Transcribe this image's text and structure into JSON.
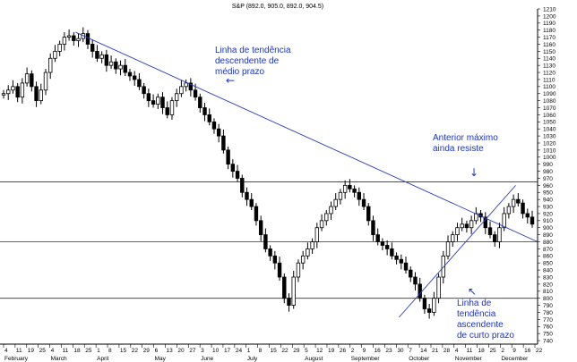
{
  "chart_data": {
    "type": "candlestick",
    "title": "S&P (892.0, 905.0, 892.0, 904.5)",
    "ylim": [
      735,
      1210
    ],
    "y_ticks": [
      740,
      750,
      760,
      770,
      780,
      790,
      800,
      810,
      820,
      830,
      840,
      850,
      860,
      870,
      880,
      890,
      900,
      910,
      920,
      930,
      940,
      950,
      960,
      970,
      980,
      990,
      1000,
      1010,
      1020,
      1030,
      1040,
      1050,
      1060,
      1070,
      1080,
      1090,
      1100,
      1110,
      1120,
      1130,
      1140,
      1150,
      1160,
      1170,
      1180,
      1190,
      1200,
      1210
    ],
    "x_ticks": [
      "4",
      "11",
      "19",
      "25",
      "4",
      "11",
      "18",
      "25",
      "1",
      "8",
      "15",
      "22",
      "29",
      "6",
      "13",
      "20",
      "27",
      "3",
      "10",
      "17",
      "24",
      "1",
      "8",
      "15",
      "22",
      "29",
      "5",
      "12",
      "19",
      "26",
      "2",
      "9",
      "16",
      "23",
      "30",
      "7",
      "14",
      "21",
      "28",
      "4",
      "11",
      "18",
      "25",
      "2",
      "9",
      "16",
      "22"
    ],
    "months": [
      "February",
      "March",
      "April",
      "May",
      "June",
      "July",
      "August",
      "September",
      "October",
      "November",
      "December"
    ],
    "horizontal_levels": [
      965,
      880,
      800
    ],
    "trendlines": [
      {
        "name": "medium-term descending",
        "from": [
          0.1407,
          1177
        ],
        "to": [
          1.0,
          880
        ]
      },
      {
        "name": "short-term ascending",
        "from": [
          0.7422,
          773
        ],
        "to": [
          0.9593,
          960
        ]
      }
    ],
    "close_series": [
      1090,
      1095,
      1100,
      1085,
      1105,
      1118,
      1100,
      1080,
      1095,
      1120,
      1140,
      1150,
      1160,
      1170,
      1172,
      1165,
      1168,
      1175,
      1160,
      1150,
      1140,
      1145,
      1130,
      1135,
      1125,
      1130,
      1120,
      1115,
      1110,
      1100,
      1090,
      1080,
      1075,
      1085,
      1070,
      1060,
      1080,
      1090,
      1100,
      1105,
      1095,
      1085,
      1070,
      1060,
      1050,
      1040,
      1030,
      1010,
      990,
      980,
      970,
      950,
      940,
      930,
      910,
      890,
      870,
      860,
      850,
      830,
      800,
      790,
      830,
      850,
      860,
      870,
      880,
      900,
      910,
      920,
      930,
      940,
      950,
      960,
      955,
      950,
      940,
      930,
      910,
      890,
      880,
      875,
      870,
      860,
      855,
      850,
      840,
      830,
      820,
      800,
      785,
      780,
      800,
      830,
      860,
      880,
      890,
      900,
      905,
      900,
      910,
      920,
      915,
      900,
      890,
      880,
      900,
      920,
      930,
      940,
      935,
      920,
      915,
      905
    ]
  },
  "annotations": {
    "medio_prazo": "Linha de tendência\ndescendente de\nmédio prazo",
    "anterior_maximo": "Anterior máximo\nainda resiste",
    "curto_prazo": "Linha de\ntendência\nascendente\nde curto prazo"
  }
}
